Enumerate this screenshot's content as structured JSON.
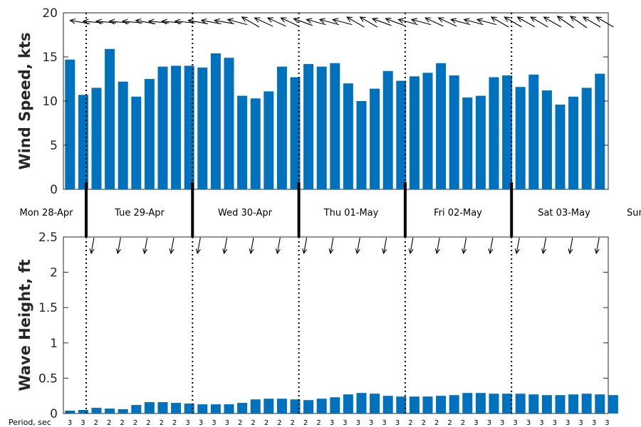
{
  "colors": {
    "bar": "#0072BD",
    "axis": "#262626",
    "arrow": "#000000"
  },
  "days": [
    "Mon 28-Apr",
    "Tue 29-Apr",
    "Wed 30-Apr",
    "Thu 01-May",
    "Fri 02-May",
    "Sat 03-May",
    "Sun"
  ],
  "period_title": "Period, sec",
  "chart_data": [
    {
      "type": "bar",
      "ylabel": "Wind Speed, kts",
      "ylim": [
        0,
        20
      ],
      "yticks": [
        "0",
        "5",
        "10",
        "15",
        "20"
      ],
      "x_units": "3-hourly forecast steps starting Mon 28-Apr 21:00",
      "values": [
        14.7,
        10.7,
        11.5,
        15.9,
        12.2,
        10.5,
        12.5,
        13.9,
        14.0,
        14.0,
        13.8,
        15.4,
        14.9,
        10.6,
        10.3,
        11.1,
        13.9,
        12.7,
        14.2,
        13.9,
        14.3,
        12.0,
        10.0,
        11.4,
        13.4,
        12.3,
        12.8,
        13.2,
        14.3,
        12.9,
        10.4,
        10.6,
        12.7,
        12.9,
        11.6,
        13.0,
        11.2,
        9.6,
        10.5,
        11.5,
        13.1
      ],
      "wind_direction_deg": [
        80,
        85,
        85,
        85,
        85,
        80,
        85,
        85,
        85,
        80,
        80,
        80,
        75,
        60,
        65,
        65,
        65,
        70,
        75,
        75,
        75,
        60,
        60,
        70,
        70,
        75,
        75,
        65,
        65,
        75,
        75,
        75,
        60,
        60,
        60,
        60,
        60,
        55,
        55,
        60,
        60
      ],
      "grid": false
    },
    {
      "type": "bar",
      "ylabel": "Wave Height, ft",
      "ylim": [
        0,
        2.5
      ],
      "yticks": [
        "0",
        "0.5",
        "1",
        "1.5",
        "2",
        "2.5"
      ],
      "x_units": "3-hourly forecast steps starting Mon 28-Apr 21:00",
      "values": [
        0.04,
        0.05,
        0.08,
        0.07,
        0.06,
        0.12,
        0.16,
        0.16,
        0.15,
        0.14,
        0.13,
        0.13,
        0.13,
        0.15,
        0.2,
        0.21,
        0.21,
        0.2,
        0.19,
        0.21,
        0.23,
        0.27,
        0.29,
        0.28,
        0.25,
        0.24,
        0.24,
        0.24,
        0.25,
        0.26,
        0.29,
        0.29,
        0.28,
        0.28,
        0.28,
        0.27,
        0.26,
        0.26,
        0.27,
        0.28,
        0.27,
        0.26
      ],
      "periods": [
        "3",
        "3",
        "2",
        "2",
        "2",
        "2",
        "2",
        "2",
        "2",
        "3",
        "3",
        "3",
        "3",
        "2",
        "2",
        "2",
        "2",
        "2",
        "2",
        "2",
        "3",
        "3",
        "3",
        "3",
        "3",
        "3",
        "2",
        "2",
        "2",
        "2",
        "2",
        "3",
        "3",
        "3",
        "3",
        "3",
        "3",
        "3",
        "3",
        "3",
        "3",
        "3"
      ],
      "wave_arrows_per_day": 4,
      "grid": false
    }
  ]
}
